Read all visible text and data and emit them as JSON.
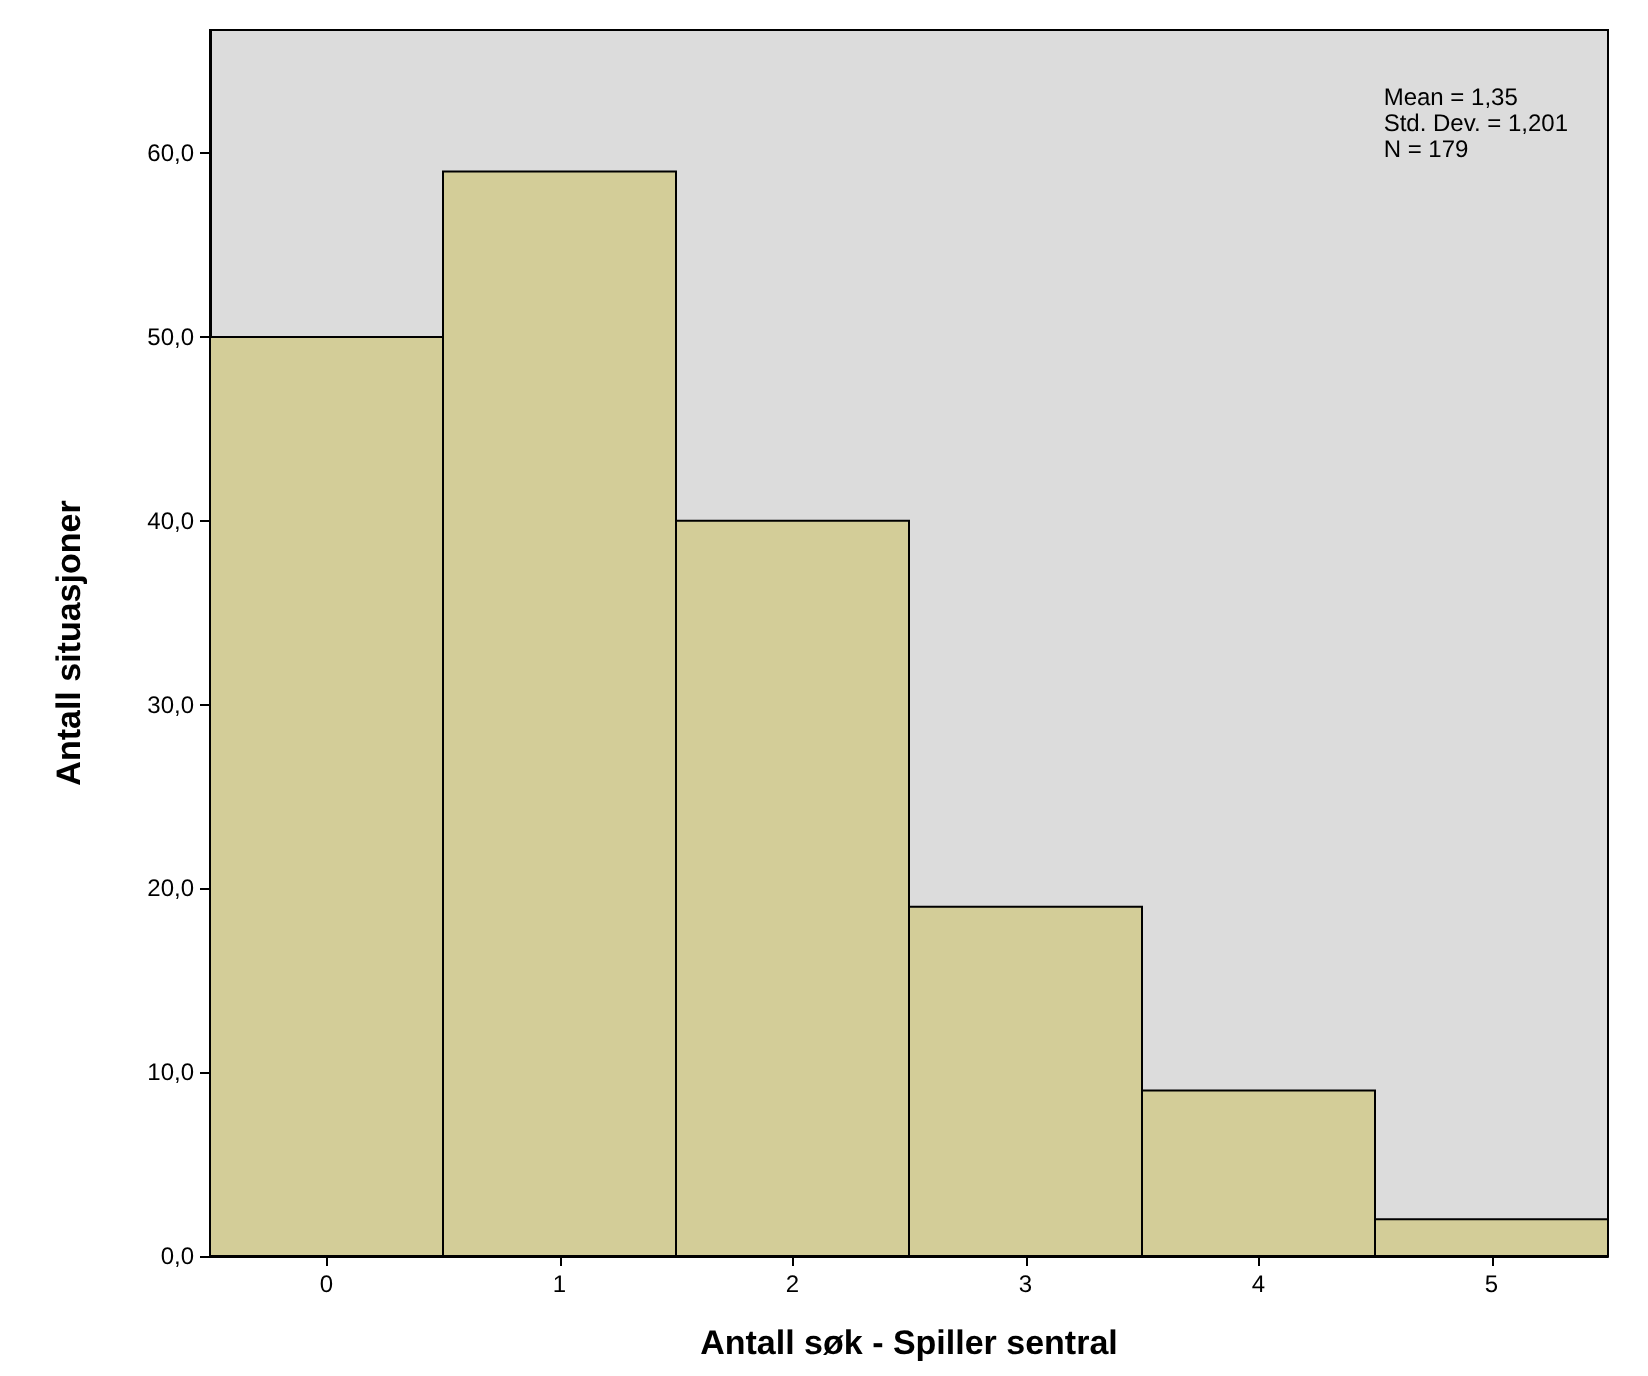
{
  "chart_data": {
    "type": "histogram",
    "xlabel": "Antall søk - Spiller sentral",
    "ylabel": "Antall situasjoner",
    "bins": [
      -0.5,
      0.5,
      1.5,
      2.5,
      3.5,
      4.5,
      5.5
    ],
    "values": [
      50,
      59,
      40,
      19,
      9,
      2
    ],
    "color": "#d3cd98",
    "xlim": [
      -0.5,
      5.5
    ],
    "xticks": [
      0,
      1,
      2,
      3,
      4,
      5
    ],
    "ylim": [
      0,
      66.7
    ],
    "yticks": [
      {
        "value": 0,
        "label": "0,0"
      },
      {
        "value": 10,
        "label": "10,0"
      },
      {
        "value": 20,
        "label": "20,0"
      },
      {
        "value": 30,
        "label": "30,0"
      },
      {
        "value": 40,
        "label": "40,0"
      },
      {
        "value": 50,
        "label": "50,0"
      },
      {
        "value": 60,
        "label": "60,0"
      }
    ],
    "annotations": [
      "Mean = 1,35",
      "Std. Dev. = 1,201",
      "N = 179"
    ],
    "grid": false
  }
}
